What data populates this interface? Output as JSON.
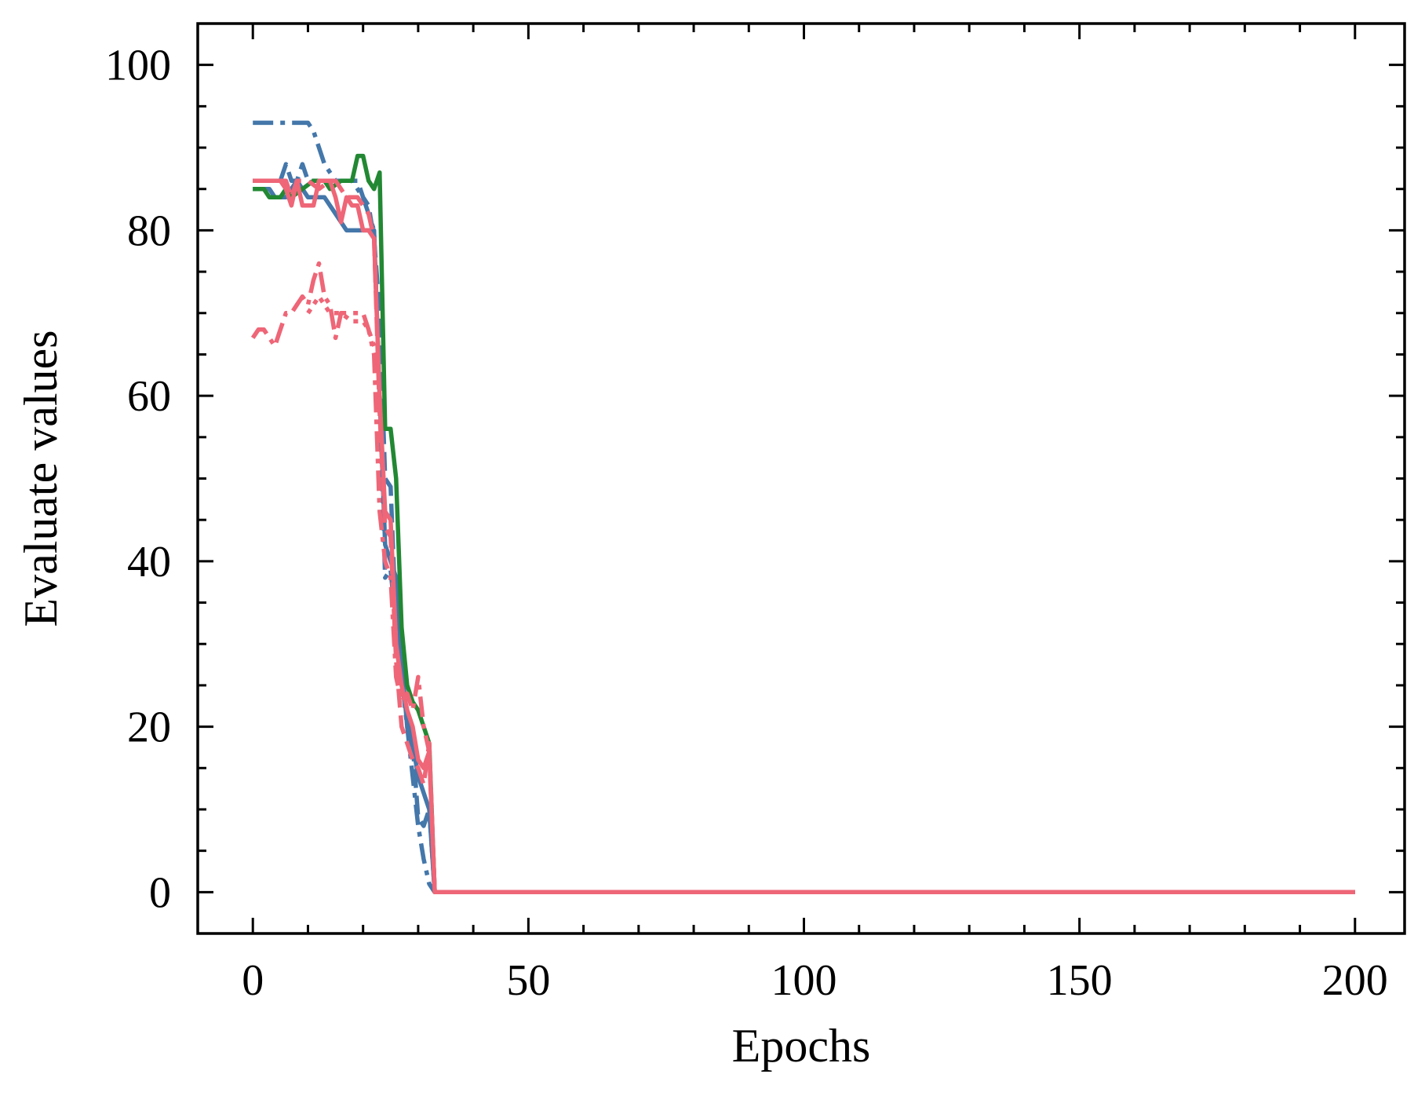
{
  "chart_data": {
    "type": "line",
    "title": "",
    "xlabel": "Epochs",
    "ylabel": "Evaluate values",
    "xlim": [
      -10,
      209
    ],
    "ylim": [
      -5,
      105
    ],
    "xticks": [
      0,
      50,
      100,
      150,
      200
    ],
    "yticks": [
      0,
      20,
      40,
      60,
      80,
      100
    ],
    "x_minor_step": 10,
    "y_minor_step": 5,
    "grid": false,
    "legend": "none",
    "series": [
      {
        "color": "#4477aa",
        "dash": "solid",
        "points": [
          [
            0,
            85
          ],
          [
            3,
            85
          ],
          [
            4,
            84
          ],
          [
            6,
            84
          ],
          [
            7,
            85
          ],
          [
            8,
            86
          ],
          [
            10,
            84
          ],
          [
            13,
            84
          ],
          [
            15,
            82
          ],
          [
            17,
            80
          ],
          [
            20,
            80
          ],
          [
            22,
            80
          ],
          [
            23,
            60
          ],
          [
            24,
            42
          ],
          [
            25,
            40
          ],
          [
            26,
            38
          ],
          [
            27,
            28
          ],
          [
            28,
            20
          ],
          [
            29,
            18
          ],
          [
            30,
            14
          ],
          [
            31,
            12
          ],
          [
            32,
            10
          ],
          [
            33,
            0
          ],
          [
            200,
            0
          ]
        ]
      },
      {
        "color": "#4477aa",
        "dash": "dashed",
        "points": [
          [
            0,
            86
          ],
          [
            5,
            86
          ],
          [
            6,
            88
          ],
          [
            7,
            86
          ],
          [
            8,
            86
          ],
          [
            9,
            88
          ],
          [
            10,
            86
          ],
          [
            14,
            86
          ],
          [
            17,
            86
          ],
          [
            19,
            86
          ],
          [
            20,
            84
          ],
          [
            21,
            83
          ],
          [
            22,
            79
          ],
          [
            23,
            70
          ],
          [
            24,
            50
          ],
          [
            25,
            49
          ],
          [
            26,
            32
          ],
          [
            27,
            25
          ],
          [
            28,
            22
          ],
          [
            29,
            18
          ],
          [
            30,
            9
          ],
          [
            31,
            8
          ],
          [
            32,
            10
          ],
          [
            33,
            0
          ],
          [
            200,
            0
          ]
        ]
      },
      {
        "color": "#4477aa",
        "dash": "dashdot",
        "points": [
          [
            0,
            93
          ],
          [
            10,
            93
          ],
          [
            11,
            92
          ],
          [
            12,
            90
          ],
          [
            13,
            88
          ],
          [
            15,
            86
          ],
          [
            18,
            86
          ],
          [
            20,
            84
          ],
          [
            22,
            80
          ],
          [
            23,
            60
          ],
          [
            24,
            38
          ],
          [
            25,
            39
          ],
          [
            26,
            32
          ],
          [
            27,
            26
          ],
          [
            28,
            20
          ],
          [
            29,
            14
          ],
          [
            30,
            8
          ],
          [
            31,
            4
          ],
          [
            32,
            1
          ],
          [
            33,
            0
          ],
          [
            200,
            0
          ]
        ]
      },
      {
        "color": "#228833",
        "dash": "solid",
        "points": [
          [
            0,
            85
          ],
          [
            2,
            85
          ],
          [
            3,
            84
          ],
          [
            5,
            84
          ],
          [
            6,
            85
          ],
          [
            7,
            84
          ],
          [
            9,
            85
          ],
          [
            11,
            86
          ],
          [
            13,
            86
          ],
          [
            14,
            85
          ],
          [
            16,
            86
          ],
          [
            18,
            86
          ],
          [
            19,
            89
          ],
          [
            20,
            89
          ],
          [
            21,
            86
          ],
          [
            22,
            85
          ],
          [
            23,
            87
          ],
          [
            24,
            56
          ],
          [
            25,
            56
          ],
          [
            26,
            50
          ],
          [
            27,
            32
          ],
          [
            28,
            25
          ],
          [
            29,
            23
          ],
          [
            30,
            22
          ],
          [
            32,
            18
          ],
          [
            33,
            0
          ],
          [
            200,
            0
          ]
        ]
      },
      {
        "color": "#228833",
        "dash": "dashed",
        "points": [
          [
            33,
            0
          ],
          [
            200,
            0
          ]
        ]
      },
      {
        "color": "#ee6677",
        "dash": "solid",
        "points": [
          [
            0,
            86
          ],
          [
            5,
            86
          ],
          [
            6,
            85
          ],
          [
            7,
            83
          ],
          [
            8,
            86
          ],
          [
            9,
            83
          ],
          [
            11,
            83
          ],
          [
            12,
            86
          ],
          [
            14,
            86
          ],
          [
            15,
            84
          ],
          [
            16,
            81
          ],
          [
            17,
            84
          ],
          [
            18,
            83
          ],
          [
            19,
            83
          ],
          [
            20,
            80
          ],
          [
            21,
            80
          ],
          [
            22,
            79
          ],
          [
            23,
            60
          ],
          [
            24,
            46
          ],
          [
            25,
            45
          ],
          [
            26,
            30
          ],
          [
            27,
            25
          ],
          [
            28,
            22
          ],
          [
            29,
            20
          ],
          [
            30,
            16
          ],
          [
            31,
            15
          ],
          [
            32,
            17
          ],
          [
            33,
            0
          ],
          [
            200,
            0
          ]
        ]
      },
      {
        "color": "#ee6677",
        "dash": "dashed",
        "points": [
          [
            0,
            86
          ],
          [
            6,
            86
          ],
          [
            7,
            84
          ],
          [
            8,
            86
          ],
          [
            10,
            86
          ],
          [
            12,
            85
          ],
          [
            14,
            86
          ],
          [
            15,
            86
          ],
          [
            17,
            84
          ],
          [
            19,
            84
          ],
          [
            21,
            82
          ],
          [
            22,
            79
          ],
          [
            23,
            58
          ],
          [
            24,
            44
          ],
          [
            25,
            43
          ],
          [
            26,
            28
          ],
          [
            27,
            20
          ],
          [
            28,
            18
          ],
          [
            29,
            16
          ],
          [
            30,
            15
          ],
          [
            31,
            13
          ],
          [
            32,
            18
          ],
          [
            33,
            0
          ],
          [
            200,
            0
          ]
        ]
      },
      {
        "color": "#ee6677",
        "dash": "dashdot",
        "points": [
          [
            0,
            67
          ],
          [
            1,
            68
          ],
          [
            2,
            68
          ],
          [
            3,
            67
          ],
          [
            4,
            66
          ],
          [
            5,
            68
          ],
          [
            6,
            70
          ],
          [
            7,
            70
          ],
          [
            8,
            71
          ],
          [
            9,
            72
          ],
          [
            10,
            71
          ],
          [
            11,
            74
          ],
          [
            12,
            76
          ],
          [
            13,
            72
          ],
          [
            14,
            71
          ],
          [
            15,
            67
          ],
          [
            16,
            70
          ],
          [
            17,
            70
          ],
          [
            18,
            70
          ],
          [
            20,
            70
          ],
          [
            21,
            68
          ],
          [
            22,
            65
          ],
          [
            23,
            46
          ],
          [
            24,
            40
          ],
          [
            25,
            38
          ],
          [
            26,
            26
          ],
          [
            27,
            23
          ],
          [
            28,
            24
          ],
          [
            29,
            22
          ],
          [
            30,
            26
          ],
          [
            31,
            20
          ],
          [
            32,
            17
          ],
          [
            33,
            0
          ],
          [
            200,
            0
          ]
        ]
      },
      {
        "color": "#ee6677",
        "dash": "dotted",
        "points": [
          [
            10,
            70
          ],
          [
            12,
            72
          ],
          [
            14,
            70
          ],
          [
            16,
            70
          ],
          [
            18,
            69
          ],
          [
            20,
            69
          ],
          [
            21,
            68
          ],
          [
            22,
            66
          ]
        ]
      }
    ]
  }
}
